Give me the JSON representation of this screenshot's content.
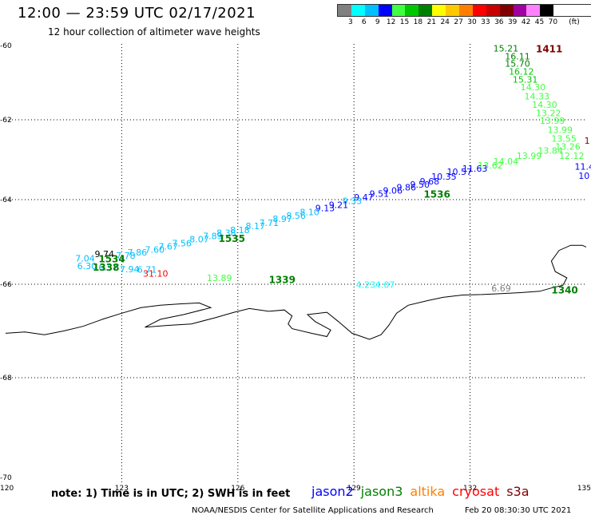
{
  "header": {
    "title": "12:00 — 23:59 UTC 02/17/2021",
    "subtitle": "12 hour collection of altimeter wave heights"
  },
  "legend": {
    "colors": [
      "#808080",
      "#00ffff",
      "#00bfff",
      "#0000ff",
      "#40ff40",
      "#00c800",
      "#008000",
      "#ffff00",
      "#ffc800",
      "#ff8000",
      "#ff0000",
      "#c80000",
      "#800000",
      "#a000a0",
      "#ff80ff",
      "#000000"
    ],
    "ticks": [
      "3",
      "6",
      "9",
      "12",
      "15",
      "18",
      "21",
      "24",
      "27",
      "30",
      "33",
      "36",
      "39",
      "42",
      "45",
      "70"
    ],
    "unit": "(ft)"
  },
  "map": {
    "lon_range": [
      120,
      135
    ],
    "lat_range": [
      -70,
      -60
    ],
    "x_ticks": [
      "120",
      "123",
      "126",
      "129",
      "132",
      "135"
    ],
    "y_ticks": [
      "-60",
      "-62",
      "-64",
      "-66",
      "-68",
      "-70"
    ],
    "gridlines": true,
    "measurements": [
      {
        "label": "15.21",
        "lon": 132.6,
        "lat": -60.16,
        "color": "#008000"
      },
      {
        "label": "16.11",
        "lon": 132.9,
        "lat": -60.38,
        "color": "#008000"
      },
      {
        "label": "15.70",
        "lon": 132.9,
        "lat": -60.57,
        "color": "#008000"
      },
      {
        "label": "16.12",
        "lon": 133.0,
        "lat": -60.78,
        "color": "#00c800"
      },
      {
        "label": "15.31",
        "lon": 133.1,
        "lat": -61.0,
        "color": "#00c800"
      },
      {
        "label": "14.30",
        "lon": 133.3,
        "lat": -61.2,
        "color": "#40ff40"
      },
      {
        "label": "14.33",
        "lon": 133.4,
        "lat": -61.45,
        "color": "#40ff40"
      },
      {
        "label": "14.30",
        "lon": 133.6,
        "lat": -61.68,
        "color": "#40ff40"
      },
      {
        "label": "13.22",
        "lon": 133.7,
        "lat": -61.9,
        "color": "#40ff40"
      },
      {
        "label": "13.99",
        "lon": 133.8,
        "lat": -62.1,
        "color": "#40ff40"
      },
      {
        "label": "13.99",
        "lon": 134.0,
        "lat": -62.33,
        "color": "#40ff40"
      },
      {
        "label": "13.55",
        "lon": 134.1,
        "lat": -62.55,
        "color": "#40ff40"
      },
      {
        "label": "13.26",
        "lon": 134.2,
        "lat": -62.75,
        "color": "#40ff40"
      },
      {
        "label": "12.12",
        "lon": 134.3,
        "lat": -62.98,
        "color": "#40ff40"
      },
      {
        "label": "13.84",
        "lon": 133.75,
        "lat": -62.85,
        "color": "#40ff40"
      },
      {
        "label": "13.99",
        "lon": 133.2,
        "lat": -62.98,
        "color": "#40ff40"
      },
      {
        "label": "14.04",
        "lon": 132.6,
        "lat": -63.12,
        "color": "#40ff40"
      },
      {
        "label": "13.62",
        "lon": 132.2,
        "lat": -63.22,
        "color": "#40ff40"
      },
      {
        "label": "11.63",
        "lon": 131.8,
        "lat": -63.3,
        "color": "#0000ff"
      },
      {
        "label": "10.57",
        "lon": 131.4,
        "lat": -63.38,
        "color": "#0000ff"
      },
      {
        "label": "10.35",
        "lon": 131.0,
        "lat": -63.5,
        "color": "#0000ff"
      },
      {
        "label": "9.68",
        "lon": 130.7,
        "lat": -63.62,
        "color": "#0000ff"
      },
      {
        "label": "9.50",
        "lon": 130.45,
        "lat": -63.7,
        "color": "#0000ff"
      },
      {
        "label": "9.86",
        "lon": 130.1,
        "lat": -63.77,
        "color": "#0000ff"
      },
      {
        "label": "9.06",
        "lon": 129.75,
        "lat": -63.85,
        "color": "#0000ff"
      },
      {
        "label": "9.51",
        "lon": 129.4,
        "lat": -63.93,
        "color": "#0000ff"
      },
      {
        "label": "9.47",
        "lon": 129.0,
        "lat": -64.02,
        "color": "#0000ff"
      },
      {
        "label": "9.33",
        "lon": 128.7,
        "lat": -64.1,
        "color": "#00bfff"
      },
      {
        "label": "9.21",
        "lon": 128.35,
        "lat": -64.2,
        "color": "#0000ff"
      },
      {
        "label": "9.13",
        "lon": 128.0,
        "lat": -64.27,
        "color": "#0000ff"
      },
      {
        "label": "8.10",
        "lon": 127.6,
        "lat": -64.37,
        "color": "#00bfff"
      },
      {
        "label": "8.56",
        "lon": 127.25,
        "lat": -64.45,
        "color": "#00bfff"
      },
      {
        "label": "8.97",
        "lon": 126.9,
        "lat": -64.53,
        "color": "#00bfff"
      },
      {
        "label": "7.71",
        "lon": 126.55,
        "lat": -64.62,
        "color": "#00bfff"
      },
      {
        "label": "8.17",
        "lon": 126.2,
        "lat": -64.7,
        "color": "#00bfff"
      },
      {
        "label": "8.18",
        "lon": 125.8,
        "lat": -64.79,
        "color": "#00bfff"
      },
      {
        "label": "8.38",
        "lon": 125.45,
        "lat": -64.86,
        "color": "#00bfff"
      },
      {
        "label": "7.89",
        "lon": 125.1,
        "lat": -64.93,
        "color": "#00bfff"
      },
      {
        "label": "8.07",
        "lon": 124.75,
        "lat": -65.01,
        "color": "#00bfff"
      },
      {
        "label": "7.56",
        "lon": 124.3,
        "lat": -65.1,
        "color": "#00bfff"
      },
      {
        "label": "7.67",
        "lon": 123.95,
        "lat": -65.18,
        "color": "#00bfff"
      },
      {
        "label": "7.60",
        "lon": 123.6,
        "lat": -65.25,
        "color": "#00bfff"
      },
      {
        "label": "7.86",
        "lon": 123.15,
        "lat": -65.32,
        "color": "#00bfff"
      },
      {
        "label": "7.78",
        "lon": 122.85,
        "lat": -65.4,
        "color": "#00bfff"
      },
      {
        "label": "9.74",
        "lon": 122.3,
        "lat": -65.36,
        "color": "#000000"
      },
      {
        "label": "7.04",
        "lon": 121.8,
        "lat": -65.46,
        "color": "#00bfff"
      },
      {
        "label": "6.30",
        "lon": 121.85,
        "lat": -65.64,
        "color": "#00bfff"
      },
      {
        "label": "6.57",
        "lon": 122.4,
        "lat": -65.68,
        "color": "#00bfff"
      },
      {
        "label": "7.94",
        "lon": 122.95,
        "lat": -65.72,
        "color": "#00bfff"
      },
      {
        "label": "6.71",
        "lon": 123.4,
        "lat": -65.73,
        "color": "#00bfff"
      },
      {
        "label": "31.10",
        "lon": 123.55,
        "lat": -65.82,
        "color": "#ff0000"
      },
      {
        "label": "13.89",
        "lon": 125.2,
        "lat": -65.92,
        "color": "#40ff40"
      },
      {
        "label": "4.23",
        "lon": 129.05,
        "lat": -66.08,
        "color": "#00ffff"
      },
      {
        "label": "4.07",
        "lon": 129.55,
        "lat": -66.08,
        "color": "#00ffff"
      },
      {
        "label": "6.69",
        "lon": 132.55,
        "lat": -66.15,
        "color": "#808080"
      },
      {
        "label": "1",
        "lon": 134.95,
        "lat": -62.6,
        "color": "#800000"
      },
      {
        "label": "11.4",
        "lon": 134.7,
        "lat": -63.25,
        "color": "#0000ff"
      },
      {
        "label": "10",
        "lon": 134.8,
        "lat": -63.48,
        "color": "#0000ff"
      }
    ],
    "pass_times": [
      {
        "label": "1411",
        "lon": 133.7,
        "lat": -60.18,
        "color": "#800000"
      },
      {
        "label": "1536",
        "lon": 130.8,
        "lat": -63.95,
        "color": "#008000"
      },
      {
        "label": "1535",
        "lon": 125.5,
        "lat": -65.0,
        "color": "#008000"
      },
      {
        "label": "1534",
        "lon": 122.4,
        "lat": -65.48,
        "color": "#008000"
      },
      {
        "label": "1338",
        "lon": 122.25,
        "lat": -65.68,
        "color": "#008000"
      },
      {
        "label": "1339",
        "lon": 126.8,
        "lat": -65.97,
        "color": "#008000"
      },
      {
        "label": "1340",
        "lon": 134.1,
        "lat": -66.2,
        "color": "#008000"
      }
    ],
    "coastline": [
      [
        120,
        -67.05
      ],
      [
        120.5,
        -67.02
      ],
      [
        121,
        -67.08
      ],
      [
        121.5,
        -67.0
      ],
      [
        122,
        -66.9
      ],
      [
        122.5,
        -66.75
      ],
      [
        123,
        -66.62
      ],
      [
        123.5,
        -66.5
      ],
      [
        124,
        -66.45
      ],
      [
        124.5,
        -66.42
      ],
      [
        125,
        -66.4
      ],
      [
        125.3,
        -66.5
      ],
      [
        124.6,
        -66.65
      ],
      [
        124.0,
        -66.75
      ],
      [
        123.6,
        -66.92
      ],
      [
        124.2,
        -66.88
      ],
      [
        124.8,
        -66.85
      ],
      [
        125.4,
        -66.72
      ],
      [
        125.9,
        -66.6
      ],
      [
        126.3,
        -66.52
      ],
      [
        126.8,
        -66.58
      ],
      [
        127.2,
        -66.55
      ],
      [
        127.4,
        -66.68
      ],
      [
        127.3,
        -66.85
      ],
      [
        127.4,
        -66.95
      ],
      [
        127.9,
        -67.05
      ],
      [
        128.3,
        -67.12
      ],
      [
        128.4,
        -66.98
      ],
      [
        128.0,
        -66.8
      ],
      [
        127.8,
        -66.65
      ],
      [
        128.3,
        -66.6
      ],
      [
        128.6,
        -66.8
      ],
      [
        128.95,
        -67.05
      ],
      [
        129.4,
        -67.18
      ],
      [
        129.7,
        -67.08
      ],
      [
        129.9,
        -66.88
      ],
      [
        130.1,
        -66.62
      ],
      [
        130.4,
        -66.45
      ],
      [
        130.9,
        -66.35
      ],
      [
        131.3,
        -66.28
      ],
      [
        131.8,
        -66.23
      ],
      [
        132.3,
        -66.22
      ],
      [
        132.8,
        -66.2
      ],
      [
        133.3,
        -66.18
      ],
      [
        133.8,
        -66.15
      ],
      [
        134.1,
        -66.08
      ],
      [
        134.4,
        -66.02
      ],
      [
        134.5,
        -65.85
      ],
      [
        134.2,
        -65.7
      ],
      [
        134.1,
        -65.45
      ],
      [
        134.3,
        -65.2
      ],
      [
        134.6,
        -65.08
      ],
      [
        134.9,
        -65.08
      ],
      [
        135,
        -65.12
      ]
    ]
  },
  "footer": {
    "note": "note: 1) Time is in UTC; 2) SWH is in feet",
    "satellites": [
      {
        "name": "jason2",
        "color": "#0000ff"
      },
      {
        "name": "jason3",
        "color": "#008000"
      },
      {
        "name": "altika",
        "color": "#ff8000"
      },
      {
        "name": "cryosat",
        "color": "#ff0000"
      },
      {
        "name": "s3a",
        "color": "#800000"
      }
    ],
    "credit": "NOAA/NESDIS Center for Satellite Applications and Research",
    "timestamp": "Feb 20 08:30:30 UTC 2021"
  }
}
